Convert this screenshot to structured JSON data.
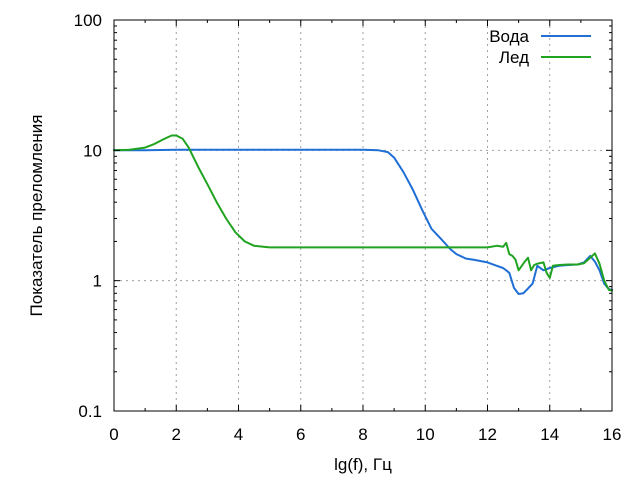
{
  "chart_data": {
    "type": "line",
    "title": "",
    "xlabel": "lg(f), Гц",
    "ylabel": "Показатель преломления",
    "xlim": [
      0,
      16
    ],
    "ylim": [
      0.1,
      100
    ],
    "yscale": "log",
    "grid": true,
    "legend_position": "top-right",
    "x_ticks": [
      0,
      2,
      4,
      6,
      8,
      10,
      12,
      14,
      16
    ],
    "x_tick_labels": [
      "0",
      "2",
      "4",
      "6",
      "8",
      "10",
      "12",
      "14",
      "16"
    ],
    "y_ticks": [
      0.1,
      1,
      10,
      100
    ],
    "y_tick_labels": [
      "0.1",
      "1",
      "10",
      "100"
    ],
    "series": [
      {
        "name": "Вода",
        "color": "#1f6fd6",
        "x": [
          0,
          1,
          2,
          3,
          4,
          5,
          6,
          7,
          8,
          8.5,
          8.8,
          9.0,
          9.3,
          9.6,
          9.9,
          10.2,
          10.5,
          10.8,
          11.0,
          11.3,
          11.6,
          12.0,
          12.3,
          12.5,
          12.7,
          12.85,
          13.0,
          13.15,
          13.3,
          13.45,
          13.6,
          13.8,
          14.0,
          14.3,
          14.6,
          14.9,
          15.1,
          15.3,
          15.45,
          15.6,
          15.75,
          15.9,
          16.0
        ],
        "y": [
          10,
          10,
          10.1,
          10.1,
          10.1,
          10.1,
          10.1,
          10.1,
          10.1,
          10.0,
          9.7,
          8.8,
          6.8,
          5.0,
          3.5,
          2.5,
          2.1,
          1.75,
          1.6,
          1.48,
          1.44,
          1.38,
          1.3,
          1.25,
          1.15,
          0.88,
          0.79,
          0.8,
          0.87,
          0.95,
          1.3,
          1.2,
          1.25,
          1.3,
          1.32,
          1.33,
          1.38,
          1.55,
          1.4,
          1.2,
          0.95,
          0.86,
          0.85
        ]
      },
      {
        "name": "Лед",
        "color": "#20a320",
        "x": [
          0,
          0.5,
          1.0,
          1.3,
          1.6,
          1.85,
          2.0,
          2.2,
          2.4,
          2.7,
          3.0,
          3.3,
          3.6,
          3.9,
          4.2,
          4.5,
          4.8,
          5.0,
          6,
          7,
          8,
          9,
          10,
          11,
          12,
          12.3,
          12.5,
          12.6,
          12.7,
          12.8,
          12.9,
          13.0,
          13.2,
          13.3,
          13.4,
          13.5,
          13.6,
          13.8,
          13.9,
          14.0,
          14.1,
          14.3,
          14.6,
          14.9,
          15.1,
          15.3,
          15.45,
          15.6,
          15.75,
          15.9,
          16.0
        ],
        "y": [
          10.0,
          10.1,
          10.5,
          11.2,
          12.2,
          13.0,
          13.0,
          12.3,
          10.5,
          7.5,
          5.5,
          4.0,
          3.0,
          2.35,
          2.0,
          1.85,
          1.82,
          1.8,
          1.8,
          1.8,
          1.8,
          1.8,
          1.8,
          1.8,
          1.8,
          1.85,
          1.82,
          1.95,
          1.6,
          1.55,
          1.45,
          1.2,
          1.4,
          1.5,
          1.2,
          1.32,
          1.35,
          1.38,
          1.15,
          1.05,
          1.3,
          1.32,
          1.33,
          1.33,
          1.36,
          1.5,
          1.62,
          1.35,
          1.0,
          0.85,
          0.84
        ]
      }
    ]
  }
}
